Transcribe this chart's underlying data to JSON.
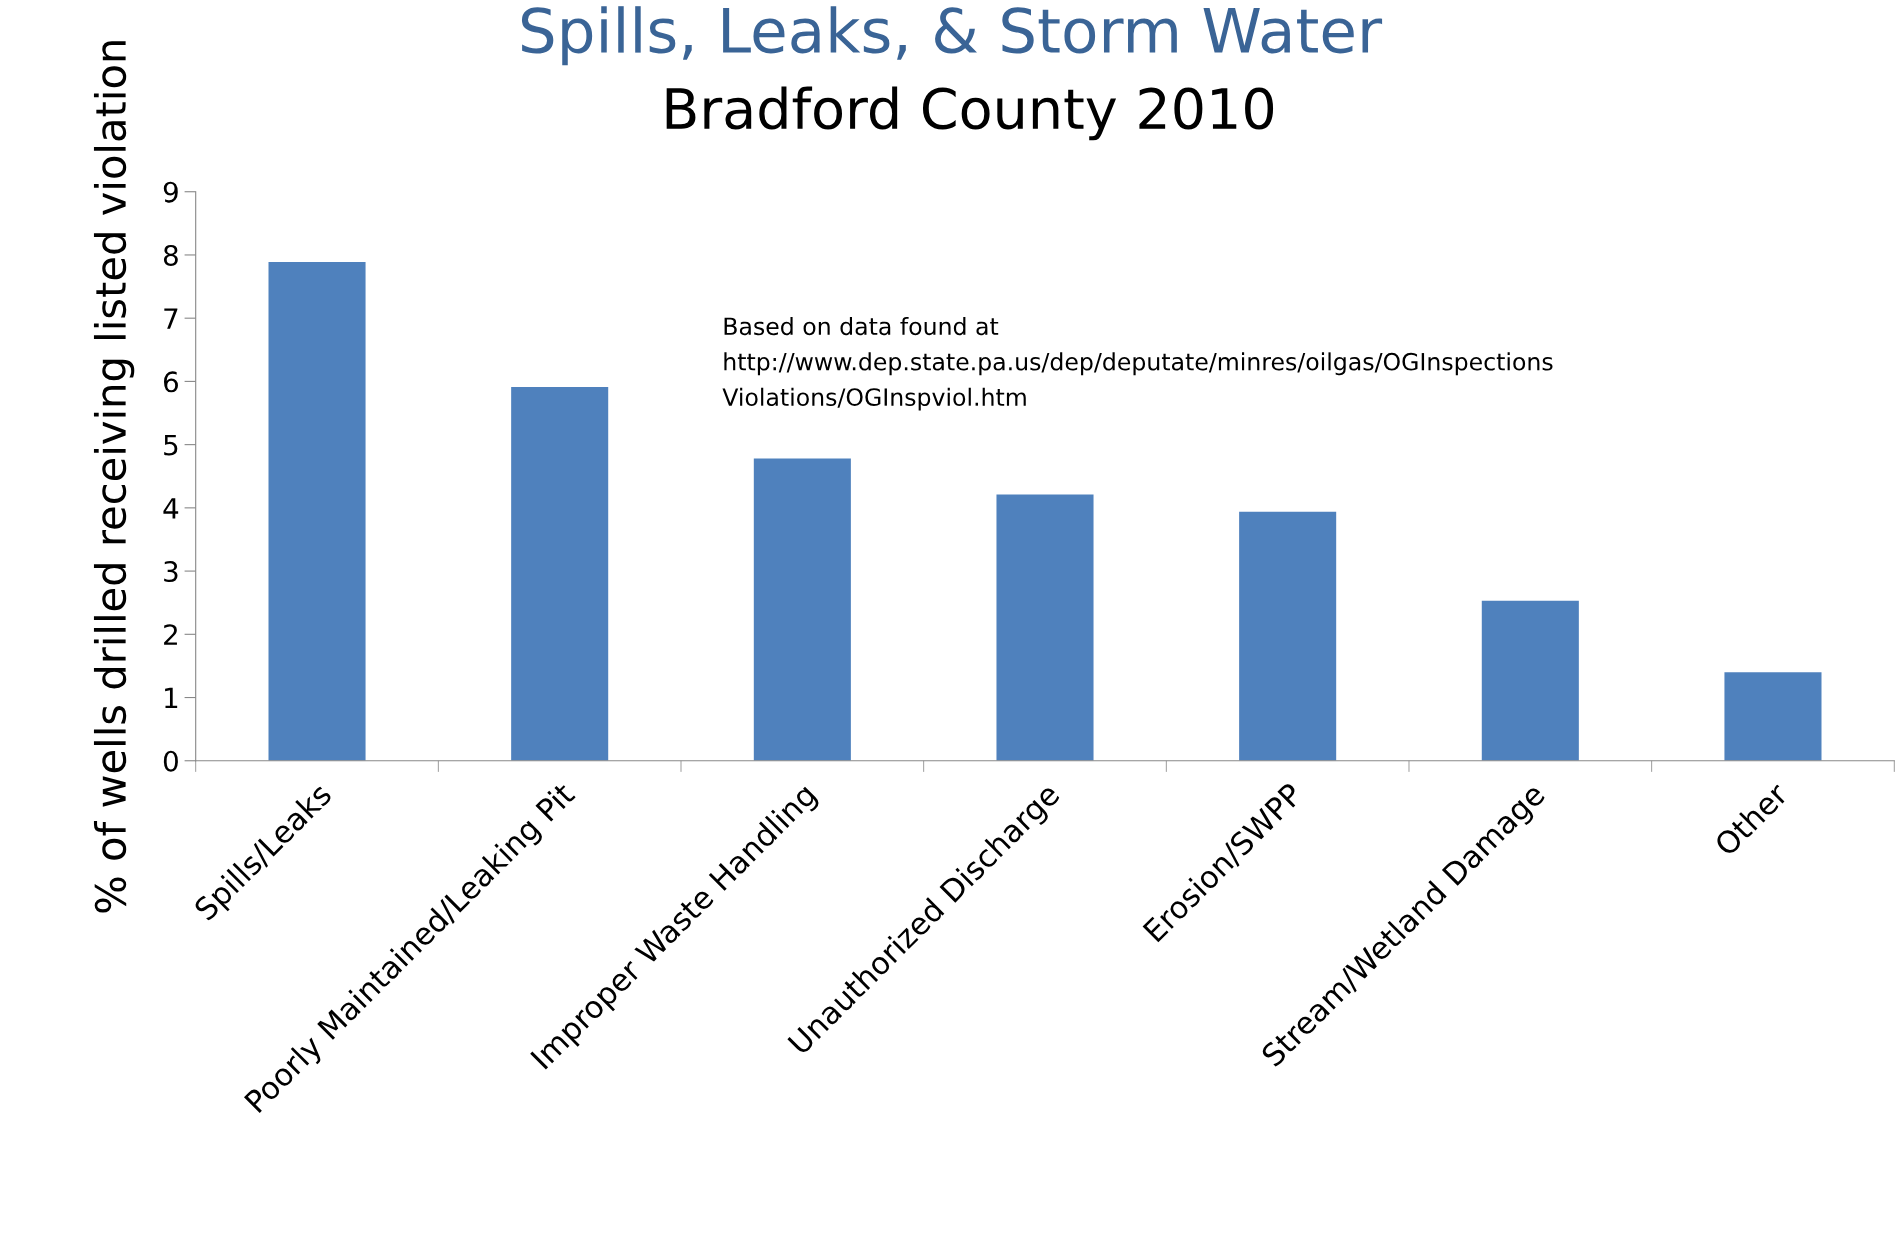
{
  "chart_data": {
    "type": "bar",
    "title": "Spills, Leaks, & Storm Water",
    "subtitle": "Bradford County 2010",
    "ylabel": "% of wells drilled receiving listed violation",
    "categories": [
      "Spills/Leaks",
      "Poorly Maintained/Leaking Pit",
      "Improper Waste Handling",
      "Unauthorized Discharge",
      "Erosion/SWPP",
      "Stream/Wetland Damage",
      "Other"
    ],
    "values": [
      7.89,
      5.91,
      4.78,
      4.21,
      3.94,
      2.53,
      1.4
    ],
    "color": "#4f81bd",
    "ylim": [
      0,
      9
    ],
    "yticks": [
      0,
      1,
      2,
      3,
      4,
      5,
      6,
      7,
      8,
      9
    ],
    "grid": false,
    "legend": false,
    "annotations": [
      "Based on data found at\nhttp://www.dep.state.pa.us/dep/deputate/minres/oilgas/OGInspections\nViolations/OGInspviol.htm"
    ]
  }
}
